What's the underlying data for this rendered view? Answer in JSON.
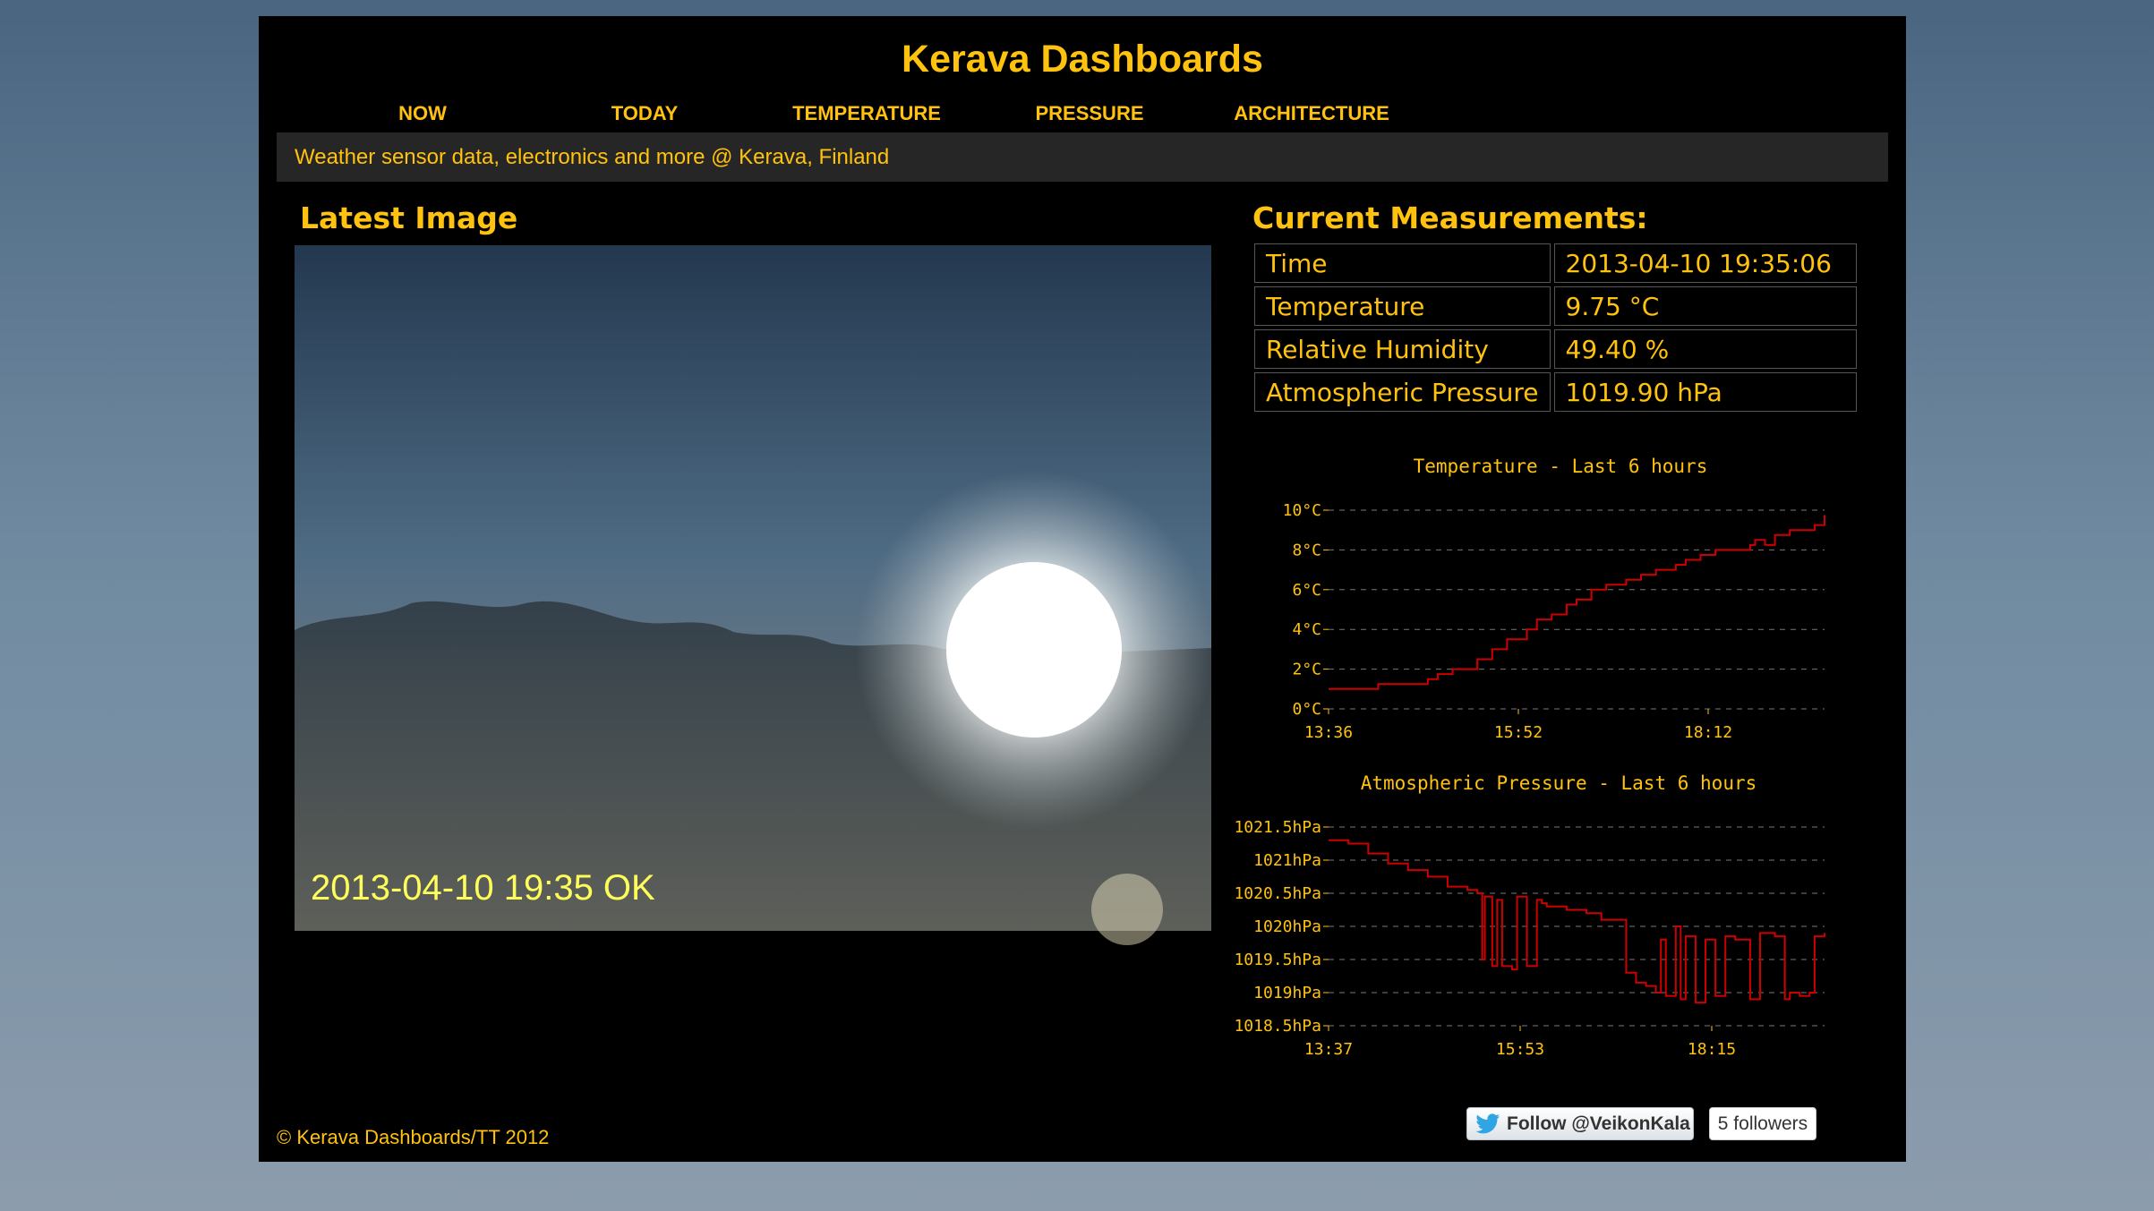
{
  "site": {
    "title": "Kerava Dashboards",
    "tagline": "Weather sensor data, electronics and more @ Kerava, Finland"
  },
  "nav": [
    {
      "label": "NOW"
    },
    {
      "label": "TODAY"
    },
    {
      "label": "TEMPERATURE"
    },
    {
      "label": "PRESSURE"
    },
    {
      "label": "ARCHITECTURE"
    }
  ],
  "latest_image": {
    "heading": "Latest Image",
    "overlay_text": "2013-04-10 19:35 OK"
  },
  "measurements": {
    "heading": "Current Measurements:",
    "rows": [
      {
        "label": "Time",
        "value": "2013-04-10 19:35:06"
      },
      {
        "label": "Temperature",
        "value": "9.75 °C"
      },
      {
        "label": "Relative Humidity",
        "value": "49.40 %"
      },
      {
        "label": "Atmospheric Pressure",
        "value": "1019.90 hPa"
      }
    ]
  },
  "chart_data": [
    {
      "type": "line",
      "title": "Temperature - Last 6 hours",
      "ylim": [
        0,
        10
      ],
      "yticks": [
        "0°C",
        "2°C",
        "4°C",
        "6°C",
        "8°C",
        "10°C"
      ],
      "xticks": [
        "13:36",
        "15:52",
        "18:12"
      ],
      "grid": true,
      "color": "#cc0000",
      "series": [
        {
          "x": [
            0,
            0.1,
            0.1,
            0.2,
            0.2,
            0.22,
            0.25,
            0.3,
            0.33,
            0.36,
            0.4,
            0.42,
            0.45,
            0.48,
            0.5,
            0.53,
            0.56,
            0.6,
            0.63,
            0.66,
            0.7,
            0.72,
            0.75,
            0.78,
            0.8,
            0.83,
            0.85,
            0.86,
            0.88,
            0.9,
            0.93,
            0.95,
            0.98,
            1.0
          ],
          "y": [
            1.0,
            1.0,
            1.25,
            1.25,
            1.5,
            1.75,
            2.0,
            2.5,
            3.0,
            3.5,
            4.0,
            4.5,
            4.75,
            5.25,
            5.5,
            6.0,
            6.25,
            6.5,
            6.75,
            7.0,
            7.25,
            7.5,
            7.75,
            8.0,
            8.0,
            8.0,
            8.25,
            8.5,
            8.25,
            8.75,
            9.0,
            9.0,
            9.25,
            9.75
          ]
        }
      ]
    },
    {
      "type": "line",
      "title": "Atmospheric Pressure - Last 6 hours",
      "ylim": [
        1018.5,
        1021.5
      ],
      "yticks": [
        "1018.5hPa",
        "1019hPa",
        "1019.5hPa",
        "1020hPa",
        "1020.5hPa",
        "1021hPa",
        "1021.5hPa"
      ],
      "xticks": [
        "13:37",
        "15:53",
        "18:15"
      ],
      "grid": true,
      "color": "#cc0000",
      "series": [
        {
          "x": [
            0,
            0.04,
            0.08,
            0.12,
            0.16,
            0.2,
            0.24,
            0.28,
            0.3,
            0.31,
            0.315,
            0.33,
            0.34,
            0.35,
            0.37,
            0.38,
            0.4,
            0.42,
            0.43,
            0.44,
            0.46,
            0.48,
            0.5,
            0.52,
            0.55,
            0.58,
            0.6,
            0.62,
            0.64,
            0.66,
            0.67,
            0.68,
            0.7,
            0.71,
            0.72,
            0.74,
            0.76,
            0.78,
            0.8,
            0.82,
            0.84,
            0.85,
            0.87,
            0.9,
            0.92,
            0.93,
            0.95,
            0.97,
            0.98,
            1.0
          ],
          "y": [
            1021.3,
            1021.25,
            1021.1,
            1020.95,
            1020.85,
            1020.75,
            1020.6,
            1020.55,
            1020.5,
            1019.5,
            1020.45,
            1019.4,
            1020.4,
            1019.4,
            1019.35,
            1020.45,
            1019.4,
            1020.4,
            1020.35,
            1020.3,
            1020.3,
            1020.25,
            1020.25,
            1020.2,
            1020.1,
            1020.1,
            1019.3,
            1019.15,
            1019.1,
            1019.0,
            1019.8,
            1018.95,
            1020.0,
            1018.9,
            1019.85,
            1018.85,
            1019.8,
            1018.95,
            1019.85,
            1019.8,
            1019.8,
            1018.9,
            1019.9,
            1019.85,
            1018.9,
            1019.0,
            1018.95,
            1019.0,
            1019.85,
            1019.9
          ]
        }
      ]
    }
  ],
  "footer": {
    "copyright": "© Kerava Dashboards/TT 2012"
  },
  "twitter": {
    "follow_label": "Follow @VeikonKala",
    "followers_label": "5 followers"
  },
  "colors": {
    "accent": "#ffc20e",
    "chart_line": "#cc0000",
    "background": "#000000"
  }
}
